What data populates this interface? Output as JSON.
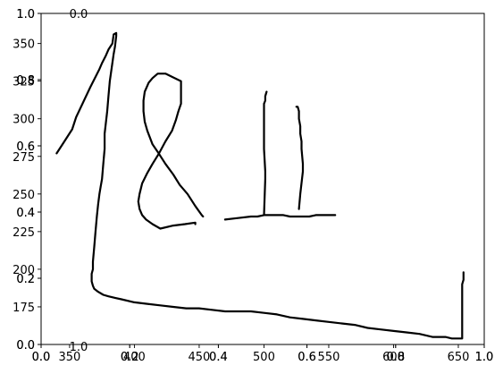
{
  "chart_data": [
    {
      "type": "line",
      "title": "",
      "xlabel": "",
      "ylabel": "",
      "x_ticks": [
        350,
        400,
        450,
        500,
        550,
        600,
        650
      ],
      "y_ticks": [
        175,
        200,
        225,
        250,
        275,
        300,
        325,
        350
      ],
      "xlim": [
        328,
        670
      ],
      "ylim": [
        150,
        370
      ],
      "grid": false,
      "series": [
        {
          "points": [
            [
              340,
              277
            ],
            [
              346,
              285
            ],
            [
              352,
              293
            ],
            [
              355,
              301
            ],
            [
              366,
              321
            ],
            [
              373,
              333
            ],
            [
              375,
              337
            ],
            [
              378,
              342
            ],
            [
              380,
              346
            ],
            [
              383,
              350
            ],
            [
              384,
              356
            ],
            [
              386,
              357
            ],
            [
              386,
              355
            ],
            [
              385,
              348
            ],
            [
              384,
              343
            ],
            [
              381,
              325
            ],
            [
              380,
              315
            ],
            [
              379,
              305
            ],
            [
              377,
              290
            ],
            [
              377,
              287
            ],
            [
              377,
              285
            ],
            [
              377,
              280
            ],
            [
              376,
              270
            ],
            [
              375,
              260
            ],
            [
              374,
              255
            ],
            [
              373,
              250
            ],
            [
              372,
              243
            ],
            [
              371,
              235
            ],
            [
              370,
              225
            ],
            [
              369,
              215
            ],
            [
              368,
              205
            ],
            [
              368,
              200
            ],
            [
              367,
              197
            ],
            [
              367,
              192
            ],
            [
              368,
              189
            ],
            [
              369,
              187
            ],
            [
              372,
              185
            ],
            [
              376,
              183
            ],
            [
              380,
              182
            ],
            [
              385,
              181
            ],
            [
              390,
              180
            ],
            [
              400,
              178
            ],
            [
              410,
              177
            ],
            [
              420,
              176
            ],
            [
              430,
              175
            ],
            [
              440,
              174
            ],
            [
              450,
              174
            ],
            [
              460,
              173
            ],
            [
              470,
              172
            ],
            [
              480,
              172
            ],
            [
              490,
              172
            ],
            [
              500,
              171
            ],
            [
              510,
              170
            ],
            [
              520,
              168
            ],
            [
              530,
              167
            ],
            [
              540,
              166
            ],
            [
              550,
              165
            ],
            [
              560,
              164
            ],
            [
              570,
              163
            ],
            [
              580,
              161
            ],
            [
              590,
              160
            ],
            [
              600,
              159
            ],
            [
              610,
              158
            ],
            [
              620,
              157
            ],
            [
              630,
              155
            ],
            [
              640,
              155
            ],
            [
              645,
              154
            ],
            [
              650,
              154
            ],
            [
              653,
              154
            ],
            [
              653,
              156
            ],
            [
              653,
              163
            ],
            [
              653,
              173
            ],
            [
              653,
              183
            ],
            [
              653,
              190
            ],
            [
              654,
              193
            ],
            [
              654,
              195
            ],
            [
              654,
              198
            ]
          ]
        },
        {
          "points": [
            [
              447,
              230
            ],
            [
              447,
              231
            ],
            [
              439,
              230
            ],
            [
              430,
              229
            ],
            [
              420,
              227
            ],
            [
              414,
              230
            ],
            [
              409,
              233
            ],
            [
              406,
              236
            ],
            [
              404,
              240
            ],
            [
              403,
              245
            ],
            [
              404,
              250
            ],
            [
              406,
              257
            ],
            [
              410,
              264
            ],
            [
              414,
              270
            ],
            [
              419,
              277
            ],
            [
              424,
              285
            ],
            [
              429,
              292
            ],
            [
              432,
              299
            ],
            [
              434,
              305
            ],
            [
              436,
              310
            ],
            [
              436,
              315
            ],
            [
              436,
              320
            ],
            [
              436,
              325
            ],
            [
              431,
              327
            ],
            [
              424,
              330
            ],
            [
              418,
              330
            ],
            [
              414,
              327
            ],
            [
              411,
              324
            ],
            [
              408,
              318
            ],
            [
              407,
              312
            ],
            [
              407,
              305
            ],
            [
              408,
              298
            ],
            [
              410,
              292
            ],
            [
              414,
              283
            ],
            [
              418,
              278
            ],
            [
              424,
              270
            ],
            [
              430,
              263
            ],
            [
              435,
              256
            ],
            [
              441,
              250
            ],
            [
              447,
              242
            ],
            [
              452,
              236
            ],
            [
              453,
              235
            ]
          ]
        },
        {
          "points": [
            [
              470,
              233
            ],
            [
              480,
              234
            ],
            [
              490,
              235
            ],
            [
              495,
              235
            ],
            [
              500,
              236
            ],
            [
              501,
              236
            ],
            [
              505,
              236
            ],
            [
              510,
              236
            ],
            [
              515,
              236
            ],
            [
              520,
              235
            ],
            [
              525,
              235
            ],
            [
              530,
              235
            ],
            [
              535,
              235
            ],
            [
              540,
              236
            ],
            [
              545,
              236
            ],
            [
              550,
              236
            ],
            [
              555,
              236
            ]
          ],
          "extra_segments": [
            [
              [
                500,
                236
              ],
              [
                501,
                260
              ],
              [
                501,
                265
              ],
              [
                500,
                280
              ],
              [
                500,
                290
              ],
              [
                500,
                295
              ],
              [
                500,
                300
              ],
              [
                500,
                305
              ],
              [
                500,
                310
              ],
              [
                501,
                312
              ],
              [
                501,
                315
              ],
              [
                502,
                318
              ]
            ],
            [
              [
                527,
                240
              ],
              [
                528,
                250
              ],
              [
                530,
                265
              ],
              [
                530,
                270
              ],
              [
                529,
                280
              ],
              [
                529,
                285
              ],
              [
                528,
                290
              ],
              [
                528,
                295
              ],
              [
                527,
                300
              ],
              [
                527,
                305
              ],
              [
                526,
                308
              ],
              [
                525,
                308
              ]
            ]
          ]
        }
      ]
    },
    {
      "type": "line",
      "title": "",
      "xlabel": "",
      "ylabel": "",
      "x_ticks": [
        "0.0",
        "0.2",
        "0.4",
        "0.6",
        "0.8",
        "1.0"
      ],
      "y_ticks": [
        "0.0",
        "0.2",
        "0.4",
        "0.6",
        "0.8",
        "1.0"
      ],
      "xlim": [
        0,
        1
      ],
      "ylim": [
        0,
        1
      ],
      "series": []
    },
    {
      "type": "line",
      "title": "",
      "xlabel": "",
      "ylabel": "",
      "x_ticks": [
        "0.0",
        "0.2",
        "0.4",
        "0.6",
        "0.8",
        "1.0"
      ],
      "y_ticks": [
        "0.0",
        "0.2",
        "0.4",
        "0.6",
        "0.8",
        "1.0"
      ],
      "xlim": [
        0,
        1
      ],
      "ylim": [
        0,
        1
      ],
      "series": []
    }
  ],
  "stray_labels": {
    "top_partial": "0.0",
    "bottom_partial": "1.0"
  },
  "colors": {
    "line": "#000000",
    "axes": "#000000",
    "background": "#ffffff"
  }
}
